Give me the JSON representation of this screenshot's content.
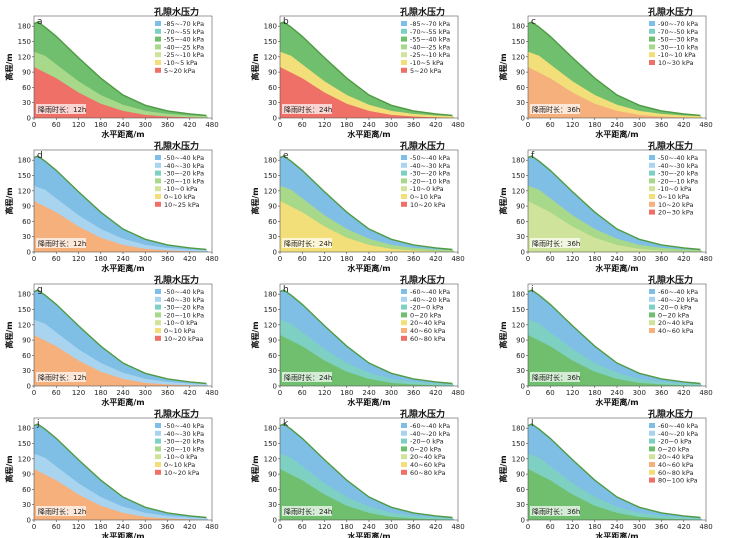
{
  "colors": {
    "blue": "#7fbfe6",
    "lightblue": "#a9d4ef",
    "teal": "#7ed0c2",
    "green": "#6fbf6f",
    "lightgreen": "#a8d88a",
    "yellowgreen": "#cfe39a",
    "yellow": "#f3df7a",
    "orange": "#f5b07c",
    "red": "#ee7067",
    "darkgreen": "#4f9a43"
  },
  "axes": {
    "x_title": "水平距离/m",
    "y_title": "高程/m",
    "x_ticks": [
      "0",
      "60",
      "120",
      "180",
      "240",
      "300",
      "360",
      "420",
      "480"
    ],
    "y_ticks": [
      "0",
      "30",
      "60",
      "90",
      "120",
      "150",
      "180"
    ]
  },
  "legend_title": "孔隙水压力",
  "panels": [
    {
      "letter": "a",
      "rain": "降雨时长：12h",
      "legend": [
        {
          "label": "-85~-70 kPa",
          "color": "blue"
        },
        {
          "label": "-70~-55 kPa",
          "color": "teal"
        },
        {
          "label": "-55~-40 kPa",
          "color": "green"
        },
        {
          "label": "-40~-25 kPa",
          "color": "lightgreen"
        },
        {
          "label": "-25~-10 kPa",
          "color": "yellowgreen"
        },
        {
          "label": "-10~5 kPa",
          "color": "yellow"
        },
        {
          "label": "5~20 kPa",
          "color": "red"
        }
      ],
      "layers": [
        "green",
        "lightgreen",
        "red"
      ]
    },
    {
      "letter": "b",
      "rain": "降雨时长：24h",
      "legend": [
        {
          "label": "-85~-70 kPa",
          "color": "blue"
        },
        {
          "label": "-70~-55 kPa",
          "color": "teal"
        },
        {
          "label": "-55~-40 kPa",
          "color": "green"
        },
        {
          "label": "-40~-25 kPa",
          "color": "lightgreen"
        },
        {
          "label": "-25~-10 kPa",
          "color": "yellowgreen"
        },
        {
          "label": "-10~5 kPa",
          "color": "yellow"
        },
        {
          "label": "5~20 kPa",
          "color": "red"
        }
      ],
      "layers": [
        "green",
        "yellow",
        "red"
      ]
    },
    {
      "letter": "c",
      "rain": "降雨时长：36h",
      "legend": [
        {
          "label": "-90~-70 kPa",
          "color": "blue"
        },
        {
          "label": "-70~-50 kPa",
          "color": "teal"
        },
        {
          "label": "-50~-30 kPa",
          "color": "green"
        },
        {
          "label": "-30~-10 kPa",
          "color": "lightgreen"
        },
        {
          "label": "-10~10 kPa",
          "color": "yellow"
        },
        {
          "label": "10~30 kPa",
          "color": "red"
        }
      ],
      "layers": [
        "green",
        "yellow",
        "orange"
      ]
    },
    {
      "letter": "d",
      "rain": "降雨时长：12h",
      "legend": [
        {
          "label": "-50~-40 kPa",
          "color": "blue"
        },
        {
          "label": "-40~-30 kPa",
          "color": "lightblue"
        },
        {
          "label": "-30~-20 kPa",
          "color": "teal"
        },
        {
          "label": "-20~-10 kPa",
          "color": "lightgreen"
        },
        {
          "label": "-10~0 kPa",
          "color": "yellowgreen"
        },
        {
          "label": "0~10 kPa",
          "color": "yellow"
        },
        {
          "label": "10~25 kPa",
          "color": "red"
        }
      ],
      "layers": [
        "blue",
        "lightblue",
        "orange"
      ]
    },
    {
      "letter": "e",
      "rain": "降雨时长：24h",
      "legend": [
        {
          "label": "-50~-40 kPa",
          "color": "blue"
        },
        {
          "label": "-40~-30 kPa",
          "color": "lightblue"
        },
        {
          "label": "-30~-20 kPa",
          "color": "teal"
        },
        {
          "label": "-20~-10 kPa",
          "color": "lightgreen"
        },
        {
          "label": "-10~0 kPa",
          "color": "yellowgreen"
        },
        {
          "label": "0~10 kPa",
          "color": "yellow"
        },
        {
          "label": "10~20 kPa",
          "color": "red"
        }
      ],
      "layers": [
        "blue",
        "lightgreen",
        "yellow"
      ]
    },
    {
      "letter": "f",
      "rain": "降雨时长：36h",
      "legend": [
        {
          "label": "-50~-40 kPa",
          "color": "blue"
        },
        {
          "label": "-40~-30 kPa",
          "color": "lightblue"
        },
        {
          "label": "-30~-20 kPa",
          "color": "teal"
        },
        {
          "label": "-20~-10 kPa",
          "color": "lightgreen"
        },
        {
          "label": "-10~0 kPa",
          "color": "yellowgreen"
        },
        {
          "label": "0~10 kPa",
          "color": "yellow"
        },
        {
          "label": "10~20 kPa",
          "color": "orange"
        },
        {
          "label": "20~30 kPa",
          "color": "red"
        }
      ],
      "layers": [
        "blue",
        "lightgreen",
        "yellowgreen"
      ]
    },
    {
      "letter": "g",
      "rain": "降雨时长：12h",
      "legend": [
        {
          "label": "-50~-40 kPa",
          "color": "blue"
        },
        {
          "label": "-40~-30 kPa",
          "color": "lightblue"
        },
        {
          "label": "-30~-20 kPa",
          "color": "teal"
        },
        {
          "label": "-20~-10 kPa",
          "color": "lightgreen"
        },
        {
          "label": "-10~0 kPa",
          "color": "yellowgreen"
        },
        {
          "label": "0~10 kPa",
          "color": "yellow"
        },
        {
          "label": "10~20 kPaa",
          "color": "red"
        }
      ],
      "layers": [
        "blue",
        "lightblue",
        "orange"
      ]
    },
    {
      "letter": "h",
      "rain": "降雨时长：24h",
      "legend": [
        {
          "label": "-60~-40 kPa",
          "color": "blue"
        },
        {
          "label": "-40~-20 kPa",
          "color": "lightblue"
        },
        {
          "label": "-20~0 kPa",
          "color": "teal"
        },
        {
          "label": "0~20 kPa",
          "color": "green"
        },
        {
          "label": "20~40 kPa",
          "color": "yellow"
        },
        {
          "label": "40~60 kPa",
          "color": "orange"
        },
        {
          "label": "60~80 kPa",
          "color": "red"
        }
      ],
      "layers": [
        "blue",
        "teal",
        "green"
      ]
    },
    {
      "letter": "i",
      "rain": "降雨时长：36h",
      "legend": [
        {
          "label": "-60~-40 kPa",
          "color": "blue"
        },
        {
          "label": "-40~-20 kPa",
          "color": "lightblue"
        },
        {
          "label": "-20~0 kPa",
          "color": "teal"
        },
        {
          "label": "0~20 kPa",
          "color": "green"
        },
        {
          "label": "20~40 kPa",
          "color": "yellowgreen"
        },
        {
          "label": "40~60 kPa",
          "color": "orange"
        }
      ],
      "layers": [
        "blue",
        "teal",
        "green"
      ]
    },
    {
      "letter": "j",
      "rain": "降雨时长：12h",
      "legend": [
        {
          "label": "-50~-40 kPa",
          "color": "blue"
        },
        {
          "label": "-40~-30 kPa",
          "color": "lightblue"
        },
        {
          "label": "-30~-20 kPa",
          "color": "teal"
        },
        {
          "label": "-20~-10 kPa",
          "color": "lightgreen"
        },
        {
          "label": "-10~0 kPa",
          "color": "yellowgreen"
        },
        {
          "label": "0~10 kPa",
          "color": "yellow"
        },
        {
          "label": "10~20 kPa",
          "color": "red"
        }
      ],
      "layers": [
        "blue",
        "lightblue",
        "orange"
      ]
    },
    {
      "letter": "k",
      "rain": "降雨时长：24h",
      "legend": [
        {
          "label": "-60~-40 kPa",
          "color": "blue"
        },
        {
          "label": "-40~-20 kPa",
          "color": "lightblue"
        },
        {
          "label": "-20~0 kPa",
          "color": "teal"
        },
        {
          "label": "0~20 kPa",
          "color": "green"
        },
        {
          "label": "20~40 kPa",
          "color": "yellowgreen"
        },
        {
          "label": "40~60 kPa",
          "color": "yellow"
        },
        {
          "label": "60~80 kPa",
          "color": "red"
        }
      ],
      "layers": [
        "blue",
        "teal",
        "green"
      ]
    },
    {
      "letter": "l",
      "rain": "降雨时长：36h",
      "legend": [
        {
          "label": "-60~-40 kPa",
          "color": "blue"
        },
        {
          "label": "-40~-20 kPa",
          "color": "lightblue"
        },
        {
          "label": "-20~0 kPa",
          "color": "teal"
        },
        {
          "label": "0~20 kPa",
          "color": "green"
        },
        {
          "label": "20~40 kPa",
          "color": "yellowgreen"
        },
        {
          "label": "40~60 kPa",
          "color": "orange"
        },
        {
          "label": "60~80 kPa",
          "color": "yellow"
        },
        {
          "label": "80~100 kPa",
          "color": "red"
        }
      ],
      "layers": [
        "blue",
        "teal",
        "green"
      ]
    }
  ]
}
